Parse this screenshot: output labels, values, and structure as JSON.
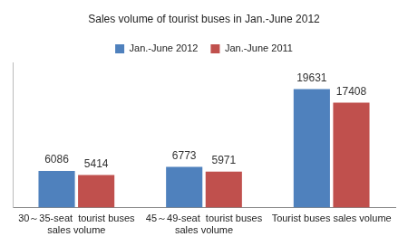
{
  "chart_data": {
    "type": "bar",
    "title": "Sales volume of tourist buses in Jan.-June 2012",
    "categories": [
      "30～35-seat  tourist buses sales volume",
      "45～49-seat  tourist buses sales volume",
      "Tourist buses sales volume"
    ],
    "series": [
      {
        "name": "Jan.-June 2012",
        "color": "#4f81bd",
        "values": [
          6086,
          6773,
          19631
        ]
      },
      {
        "name": "Jan.-June 2011",
        "color": "#c0504d",
        "values": [
          5414,
          5971,
          17408
        ]
      }
    ],
    "ylim": [
      0,
      24000
    ],
    "grid": false,
    "legend": "top",
    "data_labels": true,
    "tick_labels": "x"
  }
}
